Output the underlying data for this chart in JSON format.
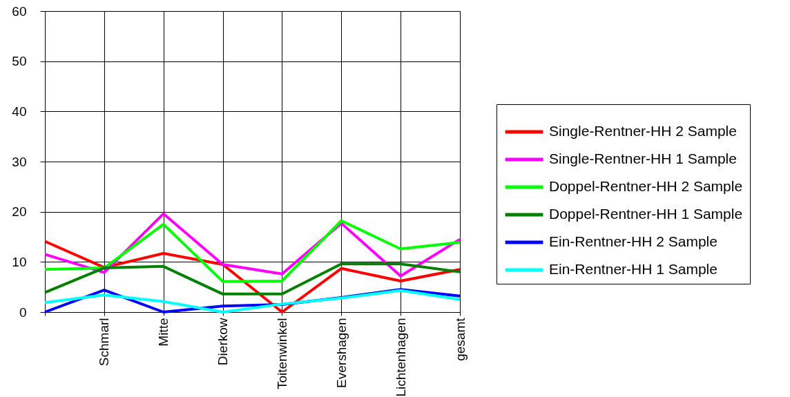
{
  "chart_data": {
    "type": "line",
    "grid": true,
    "legend": "right",
    "categories": [
      null,
      "Schmarl",
      "Mitte",
      "Dierkow",
      "Toitenwinkel",
      "Evershagen",
      "Lichtenhagen",
      "gesamt"
    ],
    "ylim": [
      0,
      60
    ],
    "yticks": [
      0,
      10,
      20,
      30,
      40,
      50,
      60
    ],
    "series": [
      {
        "name": "Single-Rentner-HH 2 Sample",
        "color": "#ff0000",
        "values": [
          14.1,
          8.9,
          11.7,
          9.5,
          0,
          8.7,
          6.2,
          8.5
        ]
      },
      {
        "name": "Single-Rentner-HH 1 Sample",
        "color": "#ff00ff",
        "values": [
          11.5,
          7.9,
          19.6,
          9.5,
          7.6,
          17.7,
          7.2,
          14.5
        ]
      },
      {
        "name": "Doppel-Rentner-HH 2 Sample",
        "color": "#00ff00",
        "values": [
          8.5,
          8.8,
          17.5,
          6.1,
          6.2,
          18.2,
          12.6,
          13.9
        ]
      },
      {
        "name": "Doppel-Rentner-HH 1 Sample",
        "color": "#008000",
        "values": [
          3.9,
          8.8,
          9.1,
          3.6,
          3.6,
          9.6,
          9.6,
          8.0
        ]
      },
      {
        "name": "Ein-Rentner-HH 2 Sample",
        "color": "#0000ff",
        "values": [
          0,
          4.4,
          0,
          1.2,
          1.5,
          2.9,
          4.5,
          3.2
        ]
      },
      {
        "name": "Ein-Rentner-HH 1 Sample",
        "color": "#00ffff",
        "values": [
          1.9,
          3.4,
          2.1,
          0,
          1.6,
          2.8,
          4.3,
          2.5
        ]
      }
    ]
  }
}
